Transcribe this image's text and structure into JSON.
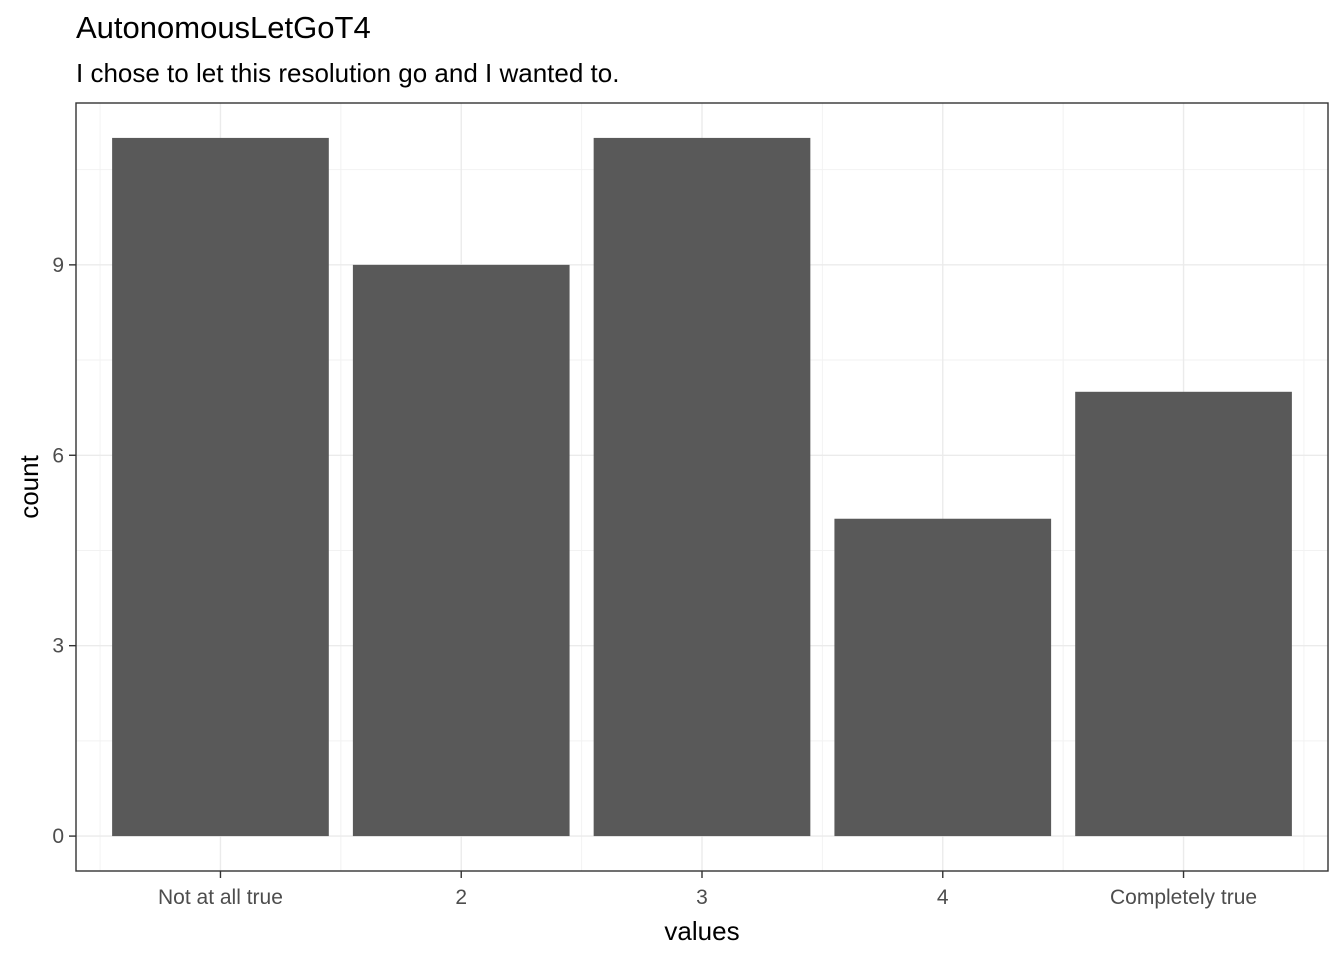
{
  "chart_data": {
    "type": "bar",
    "title": "AutonomousLetGoT4",
    "subtitle": "I chose to let this resolution go and I wanted to.",
    "xlabel": "values",
    "ylabel": "count",
    "categories": [
      "Not at all true",
      "2",
      "3",
      "4",
      "Completely true"
    ],
    "values": [
      11,
      9,
      11,
      5,
      7
    ],
    "ylim": [
      -0.55,
      11.55
    ],
    "yticks": [
      0,
      3,
      6,
      9
    ],
    "ytick_labels": [
      "0",
      "3",
      "6",
      "9"
    ],
    "bar_color": "#595959",
    "grid": true,
    "legend": "none"
  }
}
